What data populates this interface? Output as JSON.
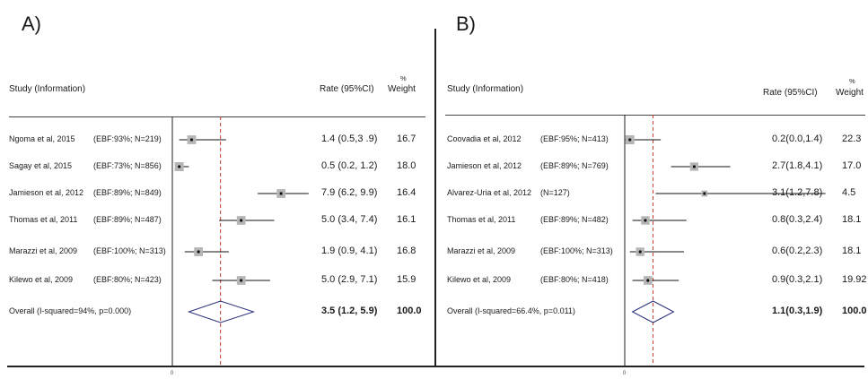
{
  "chart_data": [
    {
      "type": "forest",
      "panel_label": "A)",
      "headers": {
        "study": "Study  (Information)",
        "rate": "Rate (95%CI)",
        "weight_pct": "%",
        "weight": "Weight"
      },
      "xlim": [
        0,
        12
      ],
      "null_line": 0,
      "overall_line": 3.5,
      "axis_tick_label": "0",
      "studies": [
        {
          "study": "Ngoma et al, 2015",
          "info": "(EBF:93%; N=219)",
          "rate": 1.4,
          "lower": 0.5,
          "upper": 3.9,
          "rate_text": "1.4 (0.5,3 .9)",
          "weight": "16.7"
        },
        {
          "study": "Sagay et al, 2015",
          "info": "(EBF:73%; N=856)",
          "rate": 0.5,
          "lower": 0.2,
          "upper": 1.2,
          "rate_text": "0.5 (0.2, 1.2)",
          "weight": "18.0"
        },
        {
          "study": "Jamieson et al, 2012",
          "info": "(EBF:89%; N=849)",
          "rate": 7.9,
          "lower": 6.2,
          "upper": 9.9,
          "rate_text": "7.9 (6.2, 9.9)",
          "weight": "16.4"
        },
        {
          "study": "Thomas et al, 2011",
          "info": "(EBF:89%; N=487)",
          "rate": 5.0,
          "lower": 3.4,
          "upper": 7.4,
          "rate_text": "5.0 (3.4, 7.4)",
          "weight": "16.1"
        },
        {
          "study": "Marazzi et al, 2009",
          "info": "(EBF:100%; N=313)",
          "rate": 1.9,
          "lower": 0.9,
          "upper": 4.1,
          "rate_text": "1.9 (0.9, 4.1)",
          "weight": "16.8"
        },
        {
          "study": "Kilewo et al, 2009",
          "info": "(EBF:80%; N=423)",
          "rate": 5.0,
          "lower": 2.9,
          "upper": 7.1,
          "rate_text": "5.0 (2.9, 7.1)",
          "weight": "15.9"
        }
      ],
      "overall": {
        "label": "Overall (I-squared=94%, p=0.000)",
        "rate": 3.5,
        "lower": 1.2,
        "upper": 5.9,
        "rate_text": "3.5 (1.2, 5.9)",
        "weight": "100.0"
      }
    },
    {
      "type": "forest",
      "panel_label": "B)",
      "headers": {
        "study": "Study  (Information)",
        "rate": "Rate (95%CI)",
        "weight_pct": "%",
        "weight": "Weight"
      },
      "xlim": [
        0,
        6
      ],
      "null_line": 0,
      "overall_line": 1.1,
      "axis_tick_label": "0",
      "studies": [
        {
          "study": "Coovadia et al, 2012",
          "info": "(EBF:95%; N=413)",
          "rate": 0.2,
          "lower": 0.0,
          "upper": 1.4,
          "rate_text": "0.2(0.0,1.4)",
          "weight": "22.3"
        },
        {
          "study": "Jamieson et al, 2012",
          "info": "(EBF:89%; N=769)",
          "rate": 2.7,
          "lower": 1.8,
          "upper": 4.1,
          "rate_text": "2.7(1.8,4.1)",
          "weight": "17.0"
        },
        {
          "study": "Alvarez-Uria et al, 2012",
          "info": "(N=127)",
          "rate": 3.1,
          "lower": 1.2,
          "upper": 7.8,
          "rate_text": "3.1(1.2,7.8)",
          "weight": "4.5"
        },
        {
          "study": "Thomas et al, 2011",
          "info": "(EBF:89%; N=482)",
          "rate": 0.8,
          "lower": 0.3,
          "upper": 2.4,
          "rate_text": "0.8(0.3,2.4)",
          "weight": "18.1"
        },
        {
          "study": "Marazzi et al, 2009",
          "info": "(EBF:100%; N=313)",
          "rate": 0.6,
          "lower": 0.2,
          "upper": 2.3,
          "rate_text": "0.6(0.2,2.3)",
          "weight": "18.1"
        },
        {
          "study": "Kilewo et al, 2009",
          "info": "(EBF:80%; N=418)",
          "rate": 0.9,
          "lower": 0.3,
          "upper": 2.1,
          "rate_text": "0.9(0.3,2.1)",
          "weight": "19.92"
        }
      ],
      "overall": {
        "label": "Overall (I-squared=66.4%, p=0.011)",
        "rate": 1.1,
        "lower": 0.3,
        "upper": 1.9,
        "rate_text": "1.1(0.3,1.9)",
        "weight": "100.0"
      }
    }
  ],
  "colors": {
    "reference_line": "#c0392b",
    "axis": "#222222",
    "weight_box": "#b5b5b5",
    "diamond": "#2b2f7a"
  }
}
